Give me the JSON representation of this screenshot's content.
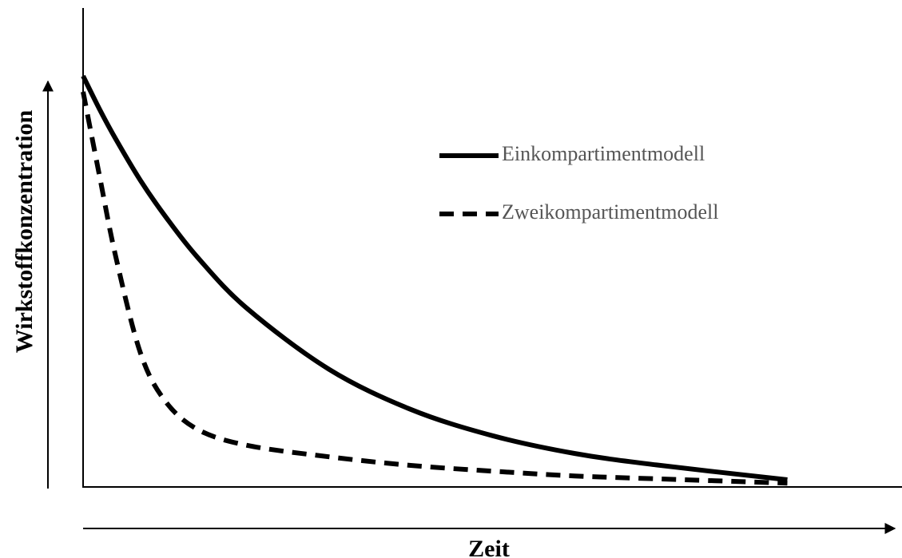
{
  "chart_data": {
    "type": "line",
    "x_label": "Zeit",
    "y_label": "Wirkstoffkonzentration",
    "xlim": [
      0,
      10
    ],
    "ylim": [
      0,
      1
    ],
    "x": [
      0,
      0.2,
      0.4,
      0.7,
      1,
      1.4,
      2,
      3,
      4,
      5,
      6,
      7,
      8.6
    ],
    "series": [
      {
        "name": "Einkompartimentmodell",
        "color": "#000000",
        "dash": "solid",
        "values": [
          0.858,
          0.789,
          0.726,
          0.64,
          0.566,
          0.479,
          0.373,
          0.246,
          0.162,
          0.107,
          0.07,
          0.046,
          0.015
        ]
      },
      {
        "name": "Zweikompartimentmodell",
        "color": "#000000",
        "dash": "dashed",
        "values": [
          0.825,
          0.65,
          0.48,
          0.28,
          0.18,
          0.12,
          0.087,
          0.063,
          0.045,
          0.033,
          0.023,
          0.017,
          0.008
        ]
      }
    ]
  }
}
